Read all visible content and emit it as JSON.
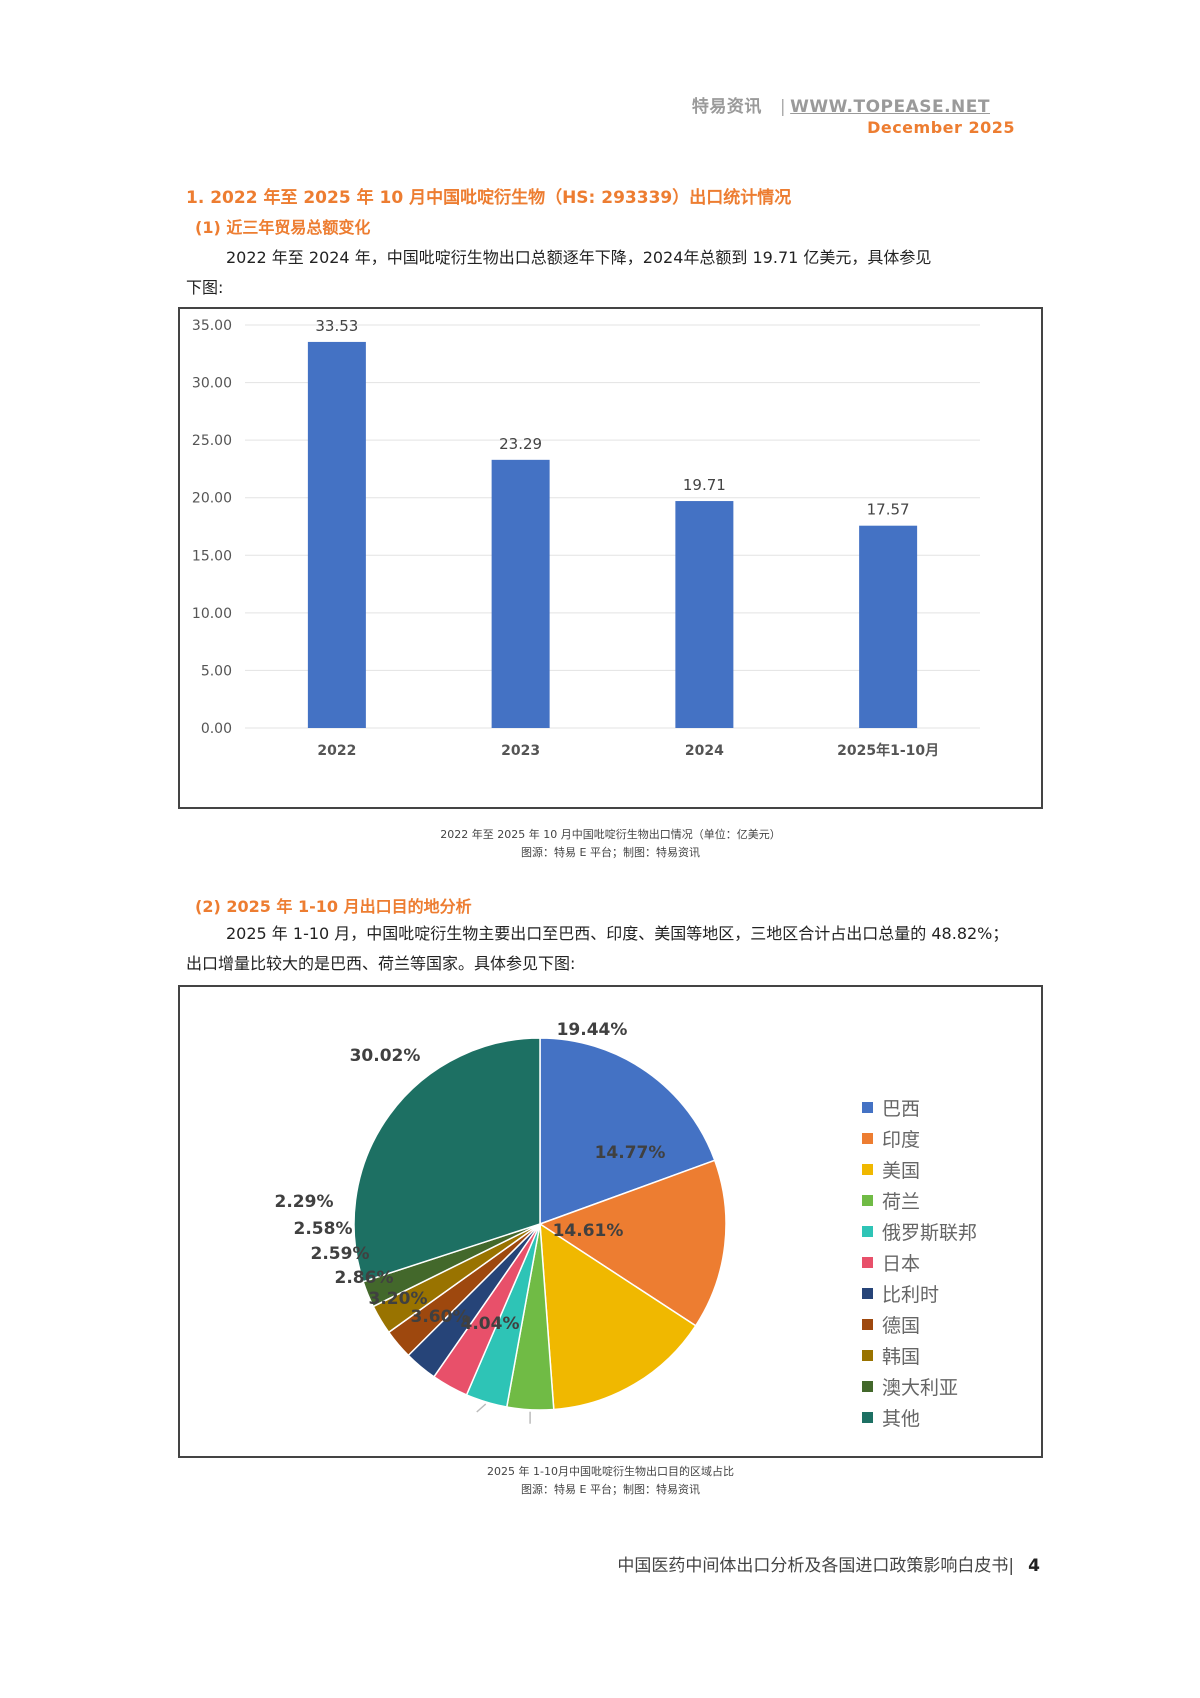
{
  "header": {
    "brand": "特易资讯",
    "separator": "|",
    "website": "WWW.TOPEASE.NET",
    "date": "December  2025"
  },
  "section1": {
    "title": "1. 2022 年至 2025 年 10 月中国吡啶衍生物（HS: 293339）出口统计情况",
    "sub1": {
      "title": "(1) 近三年贸易总额变化",
      "paragraph_line1": "2022 年至 2024 年，中国吡啶衍生物出口总额逐年下降，2024年总额到 19.71 亿美元，具体参见",
      "paragraph_line2": "下图:",
      "caption_line1": "2022 年至 2025 年 10 月中国吡啶衍生物出口情况（单位：亿美元）",
      "caption_line2": "图源：特易 E 平台；制图：特易资讯"
    },
    "sub2": {
      "title": "(2) 2025 年 1-10 月出口目的地分析",
      "paragraph_line1": "2025 年 1-10 月，中国吡啶衍生物主要出口至巴西、印度、美国等地区，三地区合计占出口总量的 48.82%；",
      "paragraph_line2": "出口增量比较大的是巴西、荷兰等国家。具体参见下图:",
      "caption_line1": "2025 年 1-10月中国吡啶衍生物出口目的区域占比",
      "caption_line2": "图源：特易 E 平台；制图：特易资讯"
    }
  },
  "footer": {
    "title": "中国医药中间体出口分析及各国进口政策影响白皮书|",
    "page": "4"
  },
  "colors": {
    "accent": "#ED7D31",
    "bar": "#4472C4"
  },
  "chart_data": [
    {
      "type": "bar",
      "title": "2022 年至 2025 年 10 月中国吡啶衍生物出口情况（单位：亿美元）",
      "categories": [
        "2022",
        "2023",
        "2024",
        "2025年1-10月"
      ],
      "values": [
        33.53,
        23.29,
        19.71,
        17.57
      ],
      "value_labels": [
        "33.53",
        "23.29",
        "19.71",
        "17.57"
      ],
      "xlabel": "",
      "ylabel": "",
      "ylim": [
        0,
        35
      ],
      "yticks": [
        "0.00",
        "5.00",
        "10.00",
        "15.00",
        "20.00",
        "25.00",
        "30.00",
        "35.00"
      ],
      "grid": true,
      "legend": "none",
      "color": "#4472C4"
    },
    {
      "type": "pie",
      "title": "2025 年 1-10月中国吡啶衍生物出口目的区域占比",
      "categories": [
        "巴西",
        "印度",
        "美国",
        "荷兰",
        "俄罗斯联邦",
        "日本",
        "比利时",
        "德国",
        "韩国",
        "澳大利亚",
        "其他"
      ],
      "values": [
        19.44,
        14.77,
        14.61,
        4.04,
        3.6,
        3.2,
        2.86,
        2.59,
        2.58,
        2.29,
        30.02
      ],
      "value_labels": [
        "19.44%",
        "14.77%",
        "14.61%",
        "4.04%",
        "3.60%",
        "3.20%",
        "2.86%",
        "2.59%",
        "2.58%",
        "2.29%",
        "30.02%"
      ],
      "colors": [
        "#4472C4",
        "#ED7D31",
        "#F0B800",
        "#70BB45",
        "#2EC4B6",
        "#E8506A",
        "#264478",
        "#9E480E",
        "#997300",
        "#43682B",
        "#1D7063"
      ],
      "legend_position": "right",
      "start_angle": "12 o'clock, clockwise"
    }
  ]
}
